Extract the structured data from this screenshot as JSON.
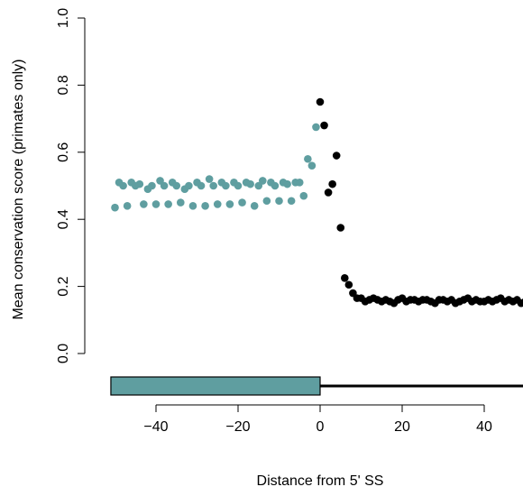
{
  "colors": {
    "exon": "#5f9ea0",
    "intron": "#000000"
  },
  "chart_data": {
    "type": "scatter",
    "title": "",
    "xlabel": "Distance from 5' SS",
    "ylabel": "Mean conservation score (primates only)",
    "xlim": [
      -52,
      52
    ],
    "ylim": [
      -0.08,
      1.0
    ],
    "xticks": [
      {
        "value": -40,
        "label": "−40"
      },
      {
        "value": -20,
        "label": "−20"
      },
      {
        "value": 0,
        "label": "0"
      },
      {
        "value": 20,
        "label": "20"
      },
      {
        "value": 40,
        "label": "40"
      }
    ],
    "yticks": [
      {
        "value": 0.0,
        "label": "0.0"
      },
      {
        "value": 0.2,
        "label": "0.2"
      },
      {
        "value": 0.4,
        "label": "0.4"
      },
      {
        "value": 0.6,
        "label": "0.6"
      },
      {
        "value": 0.8,
        "label": "0.8"
      },
      {
        "value": 1.0,
        "label": "1.0"
      }
    ],
    "gene_model": {
      "exon": {
        "from": -51,
        "to": 0
      },
      "intron": {
        "from": 0,
        "to": 52
      }
    },
    "series": [
      {
        "color": "#5f9ea0",
        "points": [
          [
            -50,
            0.435
          ],
          [
            -49,
            0.51
          ],
          [
            -48,
            0.5
          ],
          [
            -47,
            0.44
          ],
          [
            -46,
            0.51
          ],
          [
            -45,
            0.5
          ],
          [
            -44,
            0.505
          ],
          [
            -43,
            0.445
          ],
          [
            -42,
            0.49
          ],
          [
            -41,
            0.5
          ],
          [
            -40,
            0.445
          ],
          [
            -39,
            0.515
          ],
          [
            -38,
            0.5
          ],
          [
            -37,
            0.445
          ],
          [
            -36,
            0.51
          ],
          [
            -35,
            0.5
          ],
          [
            -34,
            0.45
          ],
          [
            -33,
            0.49
          ],
          [
            -32,
            0.5
          ],
          [
            -31,
            0.44
          ],
          [
            -30,
            0.51
          ],
          [
            -29,
            0.5
          ],
          [
            -28,
            0.44
          ],
          [
            -27,
            0.52
          ],
          [
            -26,
            0.5
          ],
          [
            -25,
            0.445
          ],
          [
            -24,
            0.51
          ],
          [
            -23,
            0.5
          ],
          [
            -22,
            0.445
          ],
          [
            -21,
            0.51
          ],
          [
            -20,
            0.5
          ],
          [
            -19,
            0.45
          ],
          [
            -18,
            0.51
          ],
          [
            -17,
            0.505
          ],
          [
            -16,
            0.44
          ],
          [
            -15,
            0.5
          ],
          [
            -14,
            0.515
          ],
          [
            -13,
            0.455
          ],
          [
            -12,
            0.51
          ],
          [
            -11,
            0.5
          ],
          [
            -10,
            0.455
          ],
          [
            -9,
            0.51
          ],
          [
            -8,
            0.505
          ],
          [
            -7,
            0.455
          ],
          [
            -6,
            0.51
          ],
          [
            -5,
            0.51
          ],
          [
            -4,
            0.47
          ],
          [
            -3,
            0.58
          ],
          [
            -2,
            0.56
          ],
          [
            -1,
            0.675
          ]
        ]
      },
      {
        "color": "#000000",
        "points": [
          [
            0,
            0.75
          ],
          [
            1,
            0.68
          ],
          [
            2,
            0.48
          ],
          [
            3,
            0.505
          ],
          [
            4,
            0.59
          ],
          [
            5,
            0.375
          ],
          [
            6,
            0.225
          ],
          [
            7,
            0.205
          ],
          [
            8,
            0.18
          ],
          [
            9,
            0.165
          ],
          [
            10,
            0.165
          ],
          [
            11,
            0.155
          ],
          [
            12,
            0.16
          ],
          [
            13,
            0.165
          ],
          [
            14,
            0.16
          ],
          [
            15,
            0.155
          ],
          [
            16,
            0.16
          ],
          [
            17,
            0.155
          ],
          [
            18,
            0.15
          ],
          [
            19,
            0.16
          ],
          [
            20,
            0.165
          ],
          [
            21,
            0.155
          ],
          [
            22,
            0.16
          ],
          [
            23,
            0.16
          ],
          [
            24,
            0.155
          ],
          [
            25,
            0.16
          ],
          [
            26,
            0.16
          ],
          [
            27,
            0.155
          ],
          [
            28,
            0.15
          ],
          [
            29,
            0.16
          ],
          [
            30,
            0.16
          ],
          [
            31,
            0.155
          ],
          [
            32,
            0.16
          ],
          [
            33,
            0.15
          ],
          [
            34,
            0.155
          ],
          [
            35,
            0.16
          ],
          [
            36,
            0.165
          ],
          [
            37,
            0.155
          ],
          [
            38,
            0.16
          ],
          [
            39,
            0.155
          ],
          [
            40,
            0.155
          ],
          [
            41,
            0.16
          ],
          [
            42,
            0.155
          ],
          [
            43,
            0.16
          ],
          [
            44,
            0.165
          ],
          [
            45,
            0.155
          ],
          [
            46,
            0.16
          ],
          [
            47,
            0.155
          ],
          [
            48,
            0.16
          ],
          [
            49,
            0.15
          ],
          [
            50,
            0.155
          ],
          [
            51,
            0.15
          ]
        ]
      }
    ]
  }
}
